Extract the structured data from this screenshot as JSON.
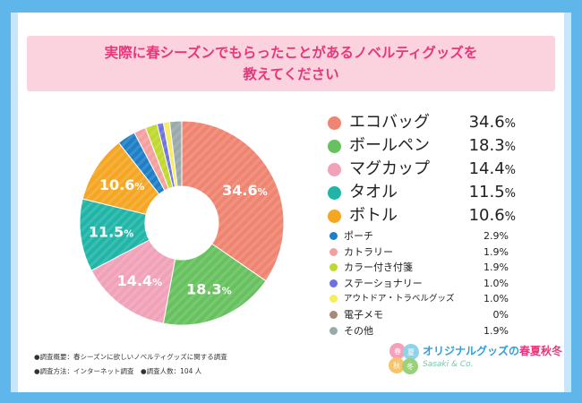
{
  "title_line1": "実際に春シーズンでもらったことがあるノベルティグッズを",
  "title_line2": "教えてください",
  "chart_data": {
    "type": "pie",
    "variant": "donut",
    "unit": "%",
    "title": "実際に春シーズンでもらったことがあるノベルティグッズを教えてください",
    "slices": [
      {
        "label": "エコバッグ",
        "value": 34.6,
        "color": "#ef8471",
        "display": "34.6"
      },
      {
        "label": "ボールペン",
        "value": 18.3,
        "color": "#67c15e",
        "display": "18.3"
      },
      {
        "label": "マグカップ",
        "value": 14.4,
        "color": "#f1a2b9",
        "display": "14.4"
      },
      {
        "label": "タオル",
        "value": 11.5,
        "color": "#21b5a8",
        "display": "11.5"
      },
      {
        "label": "ボトル",
        "value": 10.6,
        "color": "#f5a623",
        "display": "10.6"
      },
      {
        "label": "ポーチ",
        "value": 2.9,
        "color": "#1e7fc7",
        "display": "2.9"
      },
      {
        "label": "カトラリー",
        "value": 1.9,
        "color": "#f4a0a0",
        "display": "1.9"
      },
      {
        "label": "カラー付き付箋",
        "value": 1.9,
        "color": "#c1d82f",
        "display": "1.9"
      },
      {
        "label": "ステーショナリー",
        "value": 1.0,
        "color": "#6c72e0",
        "display": "1.0"
      },
      {
        "label": "アウトドア・トラベルグッズ",
        "value": 1.0,
        "color": "#f6ec5c",
        "display": "1.0"
      },
      {
        "label": "電子メモ",
        "value": 0,
        "color": "#a58b76",
        "display": "0"
      },
      {
        "label": "その他",
        "value": 1.9,
        "color": "#9aa9ab",
        "display": "1.9"
      }
    ]
  },
  "footnotes": {
    "line1": "●調査概要：春シーズンに欲しいノベルティグッズに関する調査",
    "line2": "●調査方法：インターネット調査　●調査人数：104 人"
  },
  "logo": {
    "text_main": "オリジナルグッズの",
    "text_seasons": "春夏秋冬",
    "subtitle": "Sasaki & Co.",
    "mark_chars": [
      "春",
      "夏",
      "秋",
      "冬"
    ]
  }
}
